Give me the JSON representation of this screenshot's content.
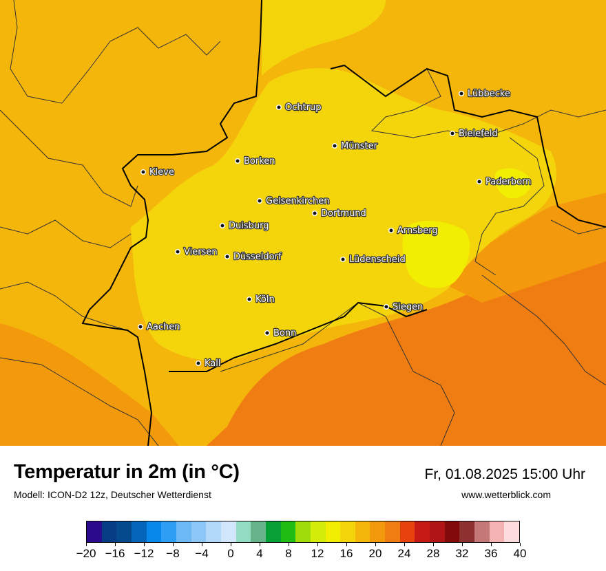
{
  "map": {
    "colors": {
      "base": "#f5b60c",
      "warm_orange": "#f39a0c",
      "hot_orange": "#f07d12",
      "light_yellow": "#f4d50c",
      "bright_yellow": "#f2ee02",
      "border_dark": "#000000",
      "border_light": "#333333"
    },
    "cities": [
      {
        "name": "Lübbecke"
      },
      {
        "name": "Ochtrup"
      },
      {
        "name": "Bielefeld"
      },
      {
        "name": "Münster"
      },
      {
        "name": "Borken"
      },
      {
        "name": "Kleve"
      },
      {
        "name": "Paderborn"
      },
      {
        "name": "Gelsenkirchen"
      },
      {
        "name": "Dortmund"
      },
      {
        "name": "Duisburg"
      },
      {
        "name": "Arnsberg"
      },
      {
        "name": "Viersen"
      },
      {
        "name": "Düsseldorf"
      },
      {
        "name": "Lüdenscheid"
      },
      {
        "name": "Köln"
      },
      {
        "name": "Siegen"
      },
      {
        "name": "Aachen"
      },
      {
        "name": "Bonn"
      },
      {
        "name": "Kall"
      }
    ]
  },
  "footer": {
    "title": "Temperatur in 2m (in °C)",
    "subtitle": "Modell: ICON-D2 12z, Deutscher Wetterdienst",
    "datetime": "Fr, 01.08.2025 15:00 Uhr",
    "website": "www.wetterblick.com"
  },
  "colorbar": {
    "min": -20,
    "max": 40,
    "colors": [
      "#2c0a8c",
      "#063d85",
      "#054a8c",
      "#0565b8",
      "#0888e8",
      "#2d9ef3",
      "#6cb8f5",
      "#8cc6f7",
      "#b2d8fa",
      "#d3e7fc",
      "#92dcc3",
      "#68b48a",
      "#06a036",
      "#1fbc14",
      "#a0dc0a",
      "#d3ec0a",
      "#f2ee02",
      "#f4d50c",
      "#f5b60c",
      "#f39a0c",
      "#f07d12",
      "#e8420e",
      "#c81a14",
      "#b01414",
      "#820a0a",
      "#8c3030",
      "#c47878",
      "#f4b2b2",
      "#fcdcdc"
    ],
    "tick_labels": [
      "−20",
      "−16",
      "−12",
      "−8",
      "−4",
      "0",
      "4",
      "8",
      "12",
      "16",
      "20",
      "24",
      "28",
      "32",
      "36",
      "40"
    ]
  }
}
